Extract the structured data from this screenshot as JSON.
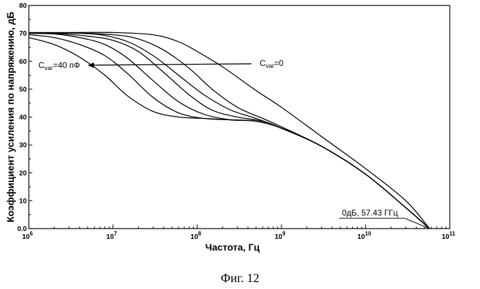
{
  "caption": "Фиг. 12",
  "chart_data": {
    "type": "line",
    "xlabel": "Частота, Гц",
    "ylabel": "Коэффициент усиления по напряжению, дБ",
    "xscale": "log",
    "xlim": [
      1000000,
      100000000000
    ],
    "ylim": [
      0,
      80
    ],
    "yticks": [
      0,
      10,
      20,
      30,
      40,
      50,
      60,
      70,
      80
    ],
    "yticklabels": [
      "0.0",
      "10",
      "20",
      "30",
      "40",
      "50",
      "60",
      "70",
      "80"
    ],
    "xticks": [
      {
        "value": 1000000,
        "base": "10",
        "exp": "6"
      },
      {
        "value": 10000000,
        "base": "10",
        "exp": "7"
      },
      {
        "value": 100000000,
        "base": "10",
        "exp": "8"
      },
      {
        "value": 1000000000,
        "base": "10",
        "exp": "9"
      },
      {
        "value": 10000000000,
        "base": "10",
        "exp": "10"
      },
      {
        "value": 100000000000,
        "base": "10",
        "exp": "11"
      }
    ],
    "series": [
      {
        "x": [
          1000000,
          3000000,
          10000000,
          30000000,
          60000000,
          100000000,
          200000000,
          500000000,
          1000000000,
          3000000000,
          10000000000,
          30000000000,
          57430000000
        ],
        "y": [
          70.3,
          70.3,
          70.3,
          69.5,
          67,
          63.5,
          58,
          49.5,
          43.5,
          33,
          21.5,
          10,
          0
        ]
      },
      {
        "x": [
          1000000,
          3000000,
          10000000,
          20000000,
          40000000,
          80000000,
          150000000,
          300000000,
          600000000,
          1000000000,
          3000000000,
          10000000000,
          30000000000,
          57430000000
        ],
        "y": [
          70.2,
          70.2,
          69.5,
          68,
          64,
          57.5,
          50,
          43.5,
          39.5,
          36.5,
          29.5,
          19.5,
          7.5,
          0
        ]
      },
      {
        "x": [
          1000000,
          3000000,
          7000000,
          15000000,
          30000000,
          60000000,
          120000000,
          250000000,
          500000000,
          1000000000,
          3000000000,
          10000000000,
          30000000000,
          57430000000
        ],
        "y": [
          70.1,
          70.1,
          69.5,
          67,
          62,
          55,
          48,
          42.5,
          39.5,
          36,
          29.5,
          19.5,
          7.5,
          0
        ]
      },
      {
        "x": [
          1000000,
          2000000,
          5000000,
          10000000,
          20000000,
          40000000,
          80000000,
          150000000,
          300000000,
          600000000,
          1000000000,
          3000000000,
          10000000000,
          30000000000,
          57430000000
        ],
        "y": [
          70,
          70,
          69,
          67.5,
          63.5,
          56,
          48,
          42.5,
          40,
          38.5,
          36,
          29.5,
          19.5,
          7.5,
          0
        ]
      },
      {
        "x": [
          1000000,
          2000000,
          4000000,
          8000000,
          15000000,
          30000000,
          60000000,
          120000000,
          250000000,
          500000000,
          1000000000,
          3000000000,
          10000000000,
          30000000000,
          57430000000
        ],
        "y": [
          70,
          69.8,
          68.5,
          66,
          61,
          53,
          45.5,
          41,
          39,
          38.5,
          36,
          29.5,
          19.5,
          7.5,
          0
        ]
      },
      {
        "x": [
          1000000,
          2000000,
          4000000,
          8000000,
          15000000,
          30000000,
          60000000,
          120000000,
          250000000,
          500000000,
          1000000000,
          3000000000,
          10000000000,
          30000000000,
          57430000000
        ],
        "y": [
          69.5,
          68.5,
          66,
          62,
          55.5,
          47,
          41.5,
          39.5,
          39,
          38.5,
          36,
          29.5,
          19.5,
          7.5,
          0
        ]
      },
      {
        "x": [
          1000000,
          2000000,
          4000000,
          8000000,
          15000000,
          30000000,
          60000000,
          120000000,
          250000000,
          500000000,
          1000000000,
          3000000000,
          10000000000,
          30000000000,
          57430000000
        ],
        "y": [
          68.5,
          66,
          61.5,
          55,
          47.5,
          42,
          40,
          39.5,
          39,
          38.5,
          36,
          29.5,
          19.5,
          7.5,
          0
        ]
      }
    ],
    "annotations": {
      "cvar_max": {
        "base": "C",
        "sub": "var",
        "rest": "=40 пФ",
        "x": 4000000,
        "y": 58.6
      },
      "cvar_min": {
        "base": "C",
        "sub": "var",
        "rest": "=0",
        "x": 200000000,
        "y": 58.6
      },
      "zero_db": {
        "text": "0дБ, 57.43 ГГц",
        "x": 57430000000,
        "y": 0
      }
    }
  }
}
